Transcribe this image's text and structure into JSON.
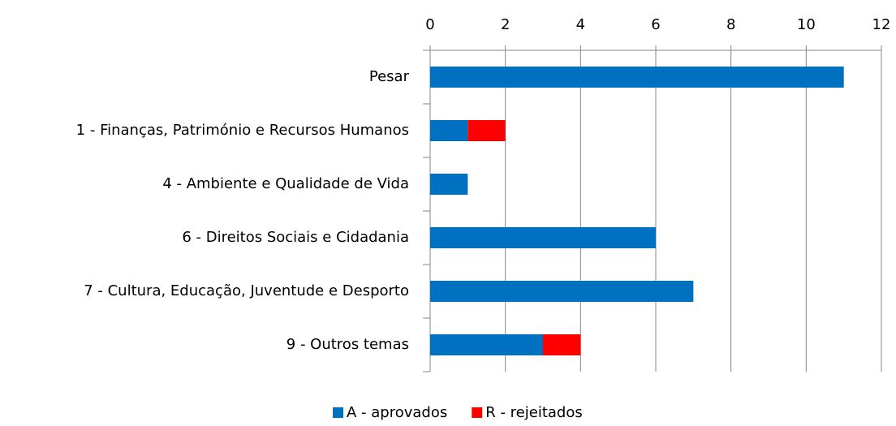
{
  "chart_data": {
    "type": "stacked_bar_horizontal",
    "categories": [
      "Pesar",
      "1 - Finanças, Património e Recursos Humanos",
      "4 - Ambiente e Qualidade de Vida",
      "6 - Direitos Sociais e Cidadania",
      "7 - Cultura, Educação, Juventude e Desporto",
      "9 - Outros temas"
    ],
    "series": [
      {
        "name": "A - aprovados",
        "color": "#0070c0",
        "values": [
          11,
          1,
          1,
          6,
          7,
          3
        ]
      },
      {
        "name": "R - rejeitados",
        "color": "#ff0000",
        "values": [
          0,
          1,
          0,
          0,
          0,
          1
        ]
      }
    ],
    "xlim": [
      0,
      12
    ],
    "xticks": [
      0,
      2,
      4,
      6,
      8,
      10,
      12
    ],
    "grid": true,
    "legend": "bottom"
  }
}
